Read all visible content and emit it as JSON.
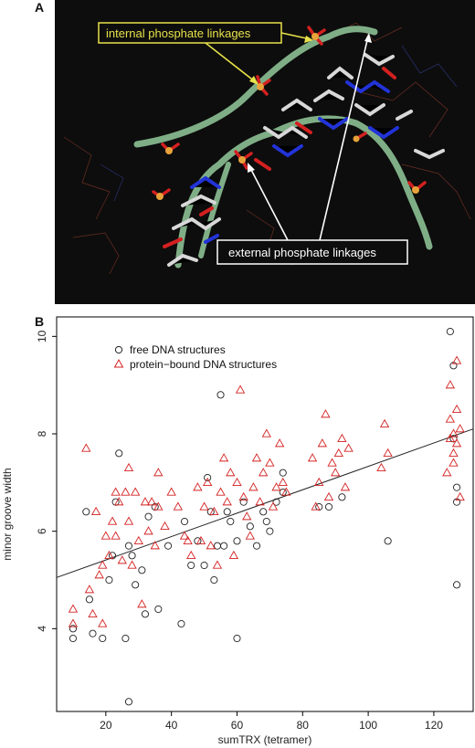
{
  "panel_a": {
    "label": "A",
    "callout_internal": "internal  phosphate linkages",
    "callout_external": "external  phosphate linkages",
    "colors": {
      "background": "#0d0d0d",
      "backbone": "#7fae86",
      "phosphorus": "#e8a23a",
      "oxygen": "#d42020",
      "nitrogen": "#2233d8",
      "carbon": "#d8d8d8",
      "internal_callout": "#e8e24a",
      "external_callout": "#ffffff"
    }
  },
  "panel_b": {
    "label": "B",
    "chart_data": {
      "type": "scatter",
      "xlabel": "sumTRX (tetramer)",
      "ylabel": "minor groove width",
      "xlim": [
        5,
        132
      ],
      "ylim": [
        2.3,
        10.4
      ],
      "x_ticks": [
        20,
        40,
        60,
        80,
        100,
        120
      ],
      "y_ticks": [
        4,
        6,
        8,
        10
      ],
      "grid": false,
      "legend_position": "top-left",
      "regression_line": {
        "x": [
          5,
          132
        ],
        "y": [
          5.05,
          8.1
        ]
      },
      "series": [
        {
          "name": "free DNA structures",
          "marker": "circle",
          "color": "#222222",
          "points": [
            [
              10,
              3.8
            ],
            [
              10,
              4.0
            ],
            [
              14,
              6.4
            ],
            [
              15,
              4.6
            ],
            [
              16,
              3.9
            ],
            [
              19,
              3.8
            ],
            [
              21,
              5.0
            ],
            [
              22,
              5.5
            ],
            [
              23,
              6.6
            ],
            [
              24,
              7.6
            ],
            [
              26,
              3.8
            ],
            [
              27,
              5.7
            ],
            [
              27,
              2.5
            ],
            [
              28,
              5.5
            ],
            [
              29,
              4.9
            ],
            [
              31,
              5.2
            ],
            [
              32,
              4.3
            ],
            [
              33,
              6.3
            ],
            [
              35,
              6.5
            ],
            [
              36,
              4.4
            ],
            [
              39,
              5.7
            ],
            [
              43,
              4.1
            ],
            [
              44,
              6.2
            ],
            [
              46,
              5.3
            ],
            [
              48,
              5.8
            ],
            [
              50,
              5.3
            ],
            [
              51,
              7.1
            ],
            [
              52,
              6.4
            ],
            [
              53,
              5.0
            ],
            [
              54,
              5.7
            ],
            [
              55,
              8.8
            ],
            [
              56,
              5.7
            ],
            [
              57,
              6.4
            ],
            [
              58,
              6.2
            ],
            [
              60,
              3.8
            ],
            [
              60,
              5.8
            ],
            [
              62,
              6.6
            ],
            [
              64,
              6.1
            ],
            [
              66,
              5.7
            ],
            [
              68,
              6.4
            ],
            [
              69,
              6.2
            ],
            [
              70,
              6.0
            ],
            [
              72,
              6.6
            ],
            [
              74,
              6.8
            ],
            [
              74,
              7.2
            ],
            [
              85,
              6.5
            ],
            [
              88,
              6.5
            ],
            [
              92,
              6.7
            ],
            [
              106,
              5.8
            ],
            [
              125,
              10.1
            ],
            [
              126,
              9.4
            ],
            [
              126,
              7.9
            ],
            [
              127,
              6.9
            ],
            [
              127,
              6.6
            ],
            [
              127,
              4.9
            ]
          ]
        },
        {
          "name": "protein−bound DNA structures",
          "marker": "triangle",
          "color": "#d42020",
          "points": [
            [
              10,
              4.1
            ],
            [
              10,
              4.4
            ],
            [
              14,
              7.7
            ],
            [
              15,
              4.8
            ],
            [
              16,
              4.3
            ],
            [
              17,
              6.4
            ],
            [
              18,
              5.1
            ],
            [
              19,
              5.3
            ],
            [
              19,
              4.1
            ],
            [
              20,
              5.9
            ],
            [
              21,
              5.5
            ],
            [
              22,
              6.2
            ],
            [
              23,
              6.8
            ],
            [
              23,
              5.9
            ],
            [
              24,
              6.6
            ],
            [
              25,
              5.4
            ],
            [
              26,
              6.8
            ],
            [
              27,
              7.3
            ],
            [
              27,
              6.2
            ],
            [
              28,
              5.3
            ],
            [
              29,
              6.8
            ],
            [
              30,
              5.8
            ],
            [
              31,
              4.5
            ],
            [
              32,
              6.6
            ],
            [
              33,
              6.0
            ],
            [
              34,
              6.6
            ],
            [
              35,
              5.7
            ],
            [
              36,
              6.5
            ],
            [
              36,
              7.2
            ],
            [
              38,
              6.1
            ],
            [
              40,
              6.8
            ],
            [
              42,
              6.5
            ],
            [
              44,
              5.9
            ],
            [
              45,
              5.8
            ],
            [
              46,
              5.5
            ],
            [
              48,
              6.9
            ],
            [
              49,
              5.8
            ],
            [
              50,
              6.5
            ],
            [
              51,
              7.0
            ],
            [
              52,
              5.7
            ],
            [
              53,
              6.4
            ],
            [
              54,
              5.3
            ],
            [
              55,
              6.8
            ],
            [
              56,
              7.5
            ],
            [
              57,
              6.6
            ],
            [
              58,
              7.2
            ],
            [
              59,
              5.5
            ],
            [
              60,
              7.0
            ],
            [
              61,
              8.9
            ],
            [
              62,
              6.7
            ],
            [
              63,
              6.3
            ],
            [
              64,
              5.9
            ],
            [
              65,
              6.9
            ],
            [
              66,
              7.5
            ],
            [
              67,
              6.6
            ],
            [
              68,
              7.2
            ],
            [
              69,
              8.0
            ],
            [
              70,
              7.4
            ],
            [
              71,
              6.5
            ],
            [
              72,
              6.9
            ],
            [
              73,
              7.8
            ],
            [
              74,
              7.0
            ],
            [
              75,
              6.8
            ],
            [
              83,
              7.5
            ],
            [
              84,
              6.5
            ],
            [
              85,
              7.0
            ],
            [
              86,
              7.8
            ],
            [
              87,
              8.4
            ],
            [
              88,
              6.7
            ],
            [
              89,
              7.4
            ],
            [
              90,
              7.2
            ],
            [
              91,
              7.6
            ],
            [
              92,
              7.9
            ],
            [
              93,
              6.9
            ],
            [
              94,
              7.7
            ],
            [
              104,
              7.3
            ],
            [
              105,
              8.2
            ],
            [
              106,
              7.6
            ],
            [
              124,
              7.2
            ],
            [
              125,
              9.0
            ],
            [
              125,
              8.3
            ],
            [
              126,
              7.6
            ],
            [
              126,
              7.4
            ],
            [
              127,
              8.5
            ],
            [
              127,
              7.8
            ],
            [
              128,
              8.1
            ],
            [
              128,
              6.7
            ],
            [
              127,
              9.5
            ],
            [
              126,
              8.0
            ],
            [
              125,
              7.9
            ]
          ]
        }
      ]
    }
  }
}
